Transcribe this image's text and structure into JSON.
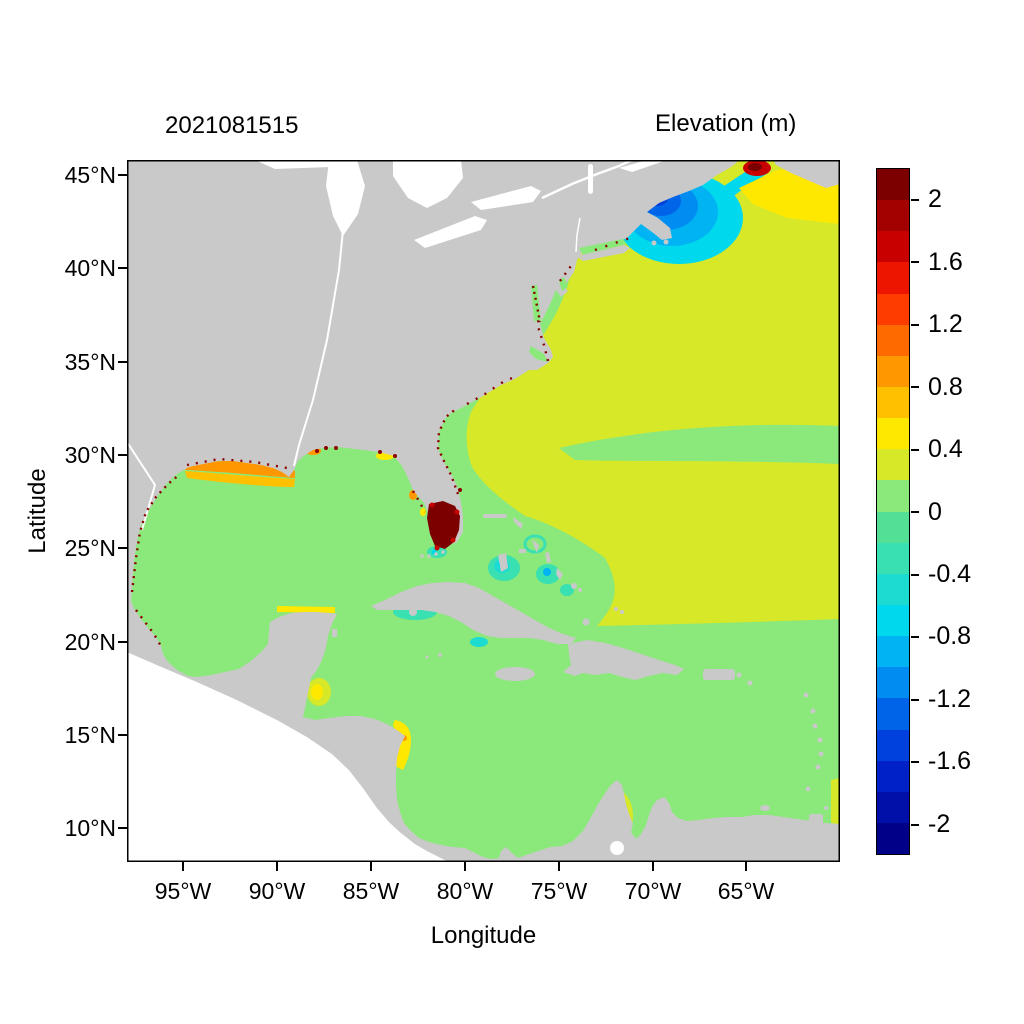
{
  "chart_data": {
    "type": "heatmap",
    "title": "2021081515",
    "colorbar_title": "Elevation (m)",
    "xlabel": "Longitude",
    "ylabel": "Latitude",
    "x_tick_labels": [
      "95°W",
      "90°W",
      "85°W",
      "80°W",
      "75°W",
      "70°W",
      "65°W"
    ],
    "y_tick_labels": [
      "45°N",
      "40°N",
      "35°N",
      "30°N",
      "25°N",
      "20°N",
      "15°N",
      "10°N"
    ],
    "lon_range_deg_west": [
      98,
      60
    ],
    "lat_range_deg_north": [
      8,
      46
    ],
    "units": "m",
    "value_range": [
      -2.2,
      2.2
    ],
    "grid": false,
    "land_color": "#C9C9C9",
    "outside_domain_color": "#FFFFFF",
    "colorbar": {
      "position": "right",
      "tick_labels": [
        "2",
        "1.6",
        "1.2",
        "0.8",
        "0.4",
        "0",
        "-0.4",
        "-0.8",
        "-1.2",
        "-1.6",
        "-2"
      ],
      "segment_step": 0.2,
      "colors_top_to_bottom": [
        "#7D0000",
        "#A30000",
        "#C90000",
        "#ED1400",
        "#FF3C00",
        "#FF6A00",
        "#FF9800",
        "#FFC000",
        "#FFE800",
        "#D7E829",
        "#8BE87A",
        "#54E094",
        "#38E0B2",
        "#1CDCD2",
        "#00D8EE",
        "#00B4F4",
        "#008CF0",
        "#0064E8",
        "#0040DC",
        "#0020C8",
        "#0010A8",
        "#000088"
      ]
    },
    "regions": [
      {
        "name": "Gulf of Mexico and Caribbean Sea",
        "elevation_m": "0 to 0.2",
        "color": "#8BE87A"
      },
      {
        "name": "Open subtropical Atlantic",
        "elevation_m": "0.2 to 0.4",
        "color": "#D7E829"
      },
      {
        "name": "Atlantic band near 29-31N east of 74W",
        "elevation_m": "0 to 0.2",
        "color": "#8BE87A"
      },
      {
        "name": "Gulf of Maine depression (fan off New England)",
        "elevation_m": "-0.4 to -2",
        "color": "#0064E8"
      },
      {
        "name": "Bay of Fundy head",
        "elevation_m": "above 1.6",
        "color": "#C90000"
      },
      {
        "name": "Scotian Shelf / Nova Scotia waters",
        "elevation_m": "0.4 to 0.6",
        "color": "#FFE800"
      },
      {
        "name": "South Florida interior (flooded)",
        "elevation_m": "above 2",
        "color": "#7D0000"
      },
      {
        "name": "Louisiana-Mississippi shelf surge",
        "elevation_m": "0.6 to 1.0",
        "color": "#FF9800"
      },
      {
        "name": "Bahama Banks",
        "elevation_m": "-0.2 to -0.8",
        "color": "#38E0B2"
      },
      {
        "name": "Cabo Gracias a Dios (Honduras/Nicaragua)",
        "elevation_m": "0.4 to 0.6",
        "color": "#FFE800"
      },
      {
        "name": "Gulf of Venezuela / Maracaibo",
        "elevation_m": "0.2 to 0.6",
        "color": "#D7E829"
      },
      {
        "name": "Coastal high-water speckles, Texas to New England",
        "elevation_m": "above 1.6",
        "color": "#8A0000"
      }
    ]
  }
}
